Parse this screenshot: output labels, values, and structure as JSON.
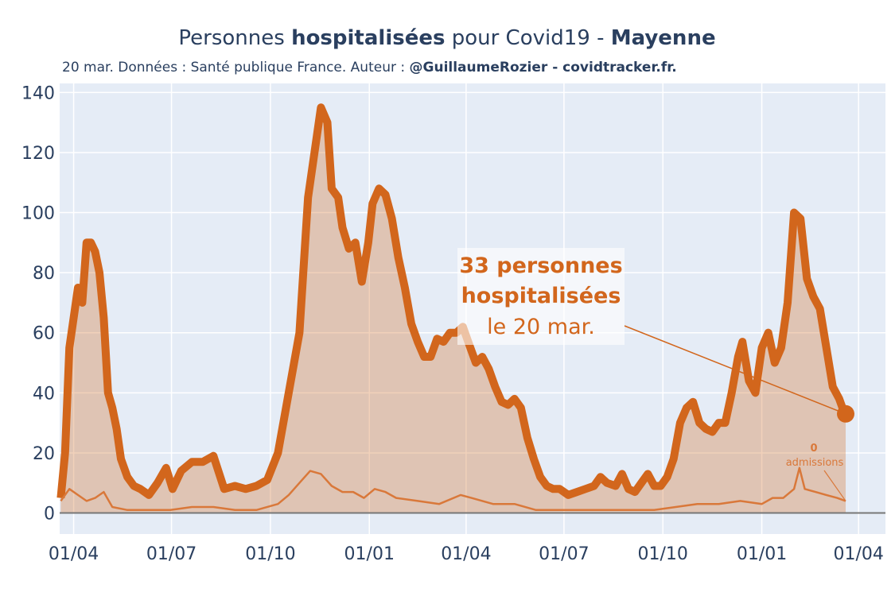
{
  "chart_data": {
    "type": "line",
    "title_parts": [
      "Personnes ",
      "hospitalisées",
      " pour Covid19 - ",
      "Mayenne"
    ],
    "subtitle_parts": [
      "20 mar. Données : Santé publique France. Auteur : ",
      "@GuillaumeRozier - covidtracker.fr."
    ],
    "xlim": [
      -13,
      755
    ],
    "xticks": [
      {
        "value": 0,
        "label": "01/04"
      },
      {
        "value": 91,
        "label": "01/07"
      },
      {
        "value": 183,
        "label": "01/10"
      },
      {
        "value": 275,
        "label": "01/01"
      },
      {
        "value": 365,
        "label": "01/04"
      },
      {
        "value": 456,
        "label": "01/07"
      },
      {
        "value": 548,
        "label": "01/10"
      },
      {
        "value": 640,
        "label": "01/01"
      },
      {
        "value": 730,
        "label": "01/04"
      }
    ],
    "ylim": [
      -7,
      143
    ],
    "yticks": [
      0,
      20,
      40,
      60,
      80,
      100,
      120,
      140
    ],
    "grid": true,
    "series": [
      {
        "color": "#d2661c",
        "fill": true,
        "x": [
          -12,
          -8,
          -4,
          0,
          4,
          8,
          12,
          16,
          20,
          24,
          28,
          32,
          36,
          40,
          44,
          50,
          56,
          62,
          70,
          78,
          86,
          92,
          100,
          110,
          120,
          130,
          140,
          150,
          160,
          170,
          180,
          190,
          200,
          210,
          218,
          224,
          230,
          236,
          240,
          246,
          250,
          256,
          262,
          268,
          274,
          278,
          284,
          290,
          296,
          302,
          308,
          314,
          320,
          326,
          332,
          338,
          344,
          350,
          356,
          362,
          368,
          374,
          380,
          386,
          392,
          398,
          404,
          410,
          416,
          422,
          428,
          434,
          440,
          446,
          452,
          460,
          468,
          476,
          484,
          490,
          496,
          504,
          510,
          516,
          522,
          528,
          534,
          540,
          546,
          552,
          558,
          564,
          570,
          576,
          582,
          588,
          594,
          600,
          606,
          612,
          618,
          622,
          628,
          634,
          640,
          646,
          652,
          658,
          664,
          670,
          676,
          682,
          688,
          694,
          700,
          706,
          712,
          716,
          718
        ],
        "values": [
          5,
          20,
          55,
          65,
          75,
          70,
          90,
          90,
          87,
          80,
          65,
          40,
          35,
          28,
          18,
          12,
          9,
          8,
          6,
          10,
          15,
          8,
          14,
          17,
          17,
          19,
          8,
          9,
          8,
          9,
          11,
          20,
          40,
          60,
          105,
          120,
          135,
          130,
          108,
          105,
          95,
          88,
          90,
          77,
          90,
          103,
          108,
          106,
          98,
          85,
          75,
          63,
          57,
          52,
          52,
          58,
          57,
          60,
          60,
          62,
          56,
          50,
          52,
          48,
          42,
          37,
          36,
          38,
          35,
          25,
          18,
          12,
          9,
          8,
          8,
          6,
          7,
          8,
          9,
          12,
          10,
          9,
          13,
          8,
          7,
          10,
          13,
          9,
          9,
          12,
          18,
          30,
          35,
          37,
          30,
          28,
          27,
          30,
          30,
          40,
          52,
          57,
          44,
          40,
          55,
          60,
          50,
          55,
          70,
          100,
          98,
          78,
          72,
          68,
          55,
          42,
          38,
          34,
          33
        ]
      },
      {
        "color": "#d9783a",
        "fill": false,
        "x": [
          -12,
          -4,
          4,
          12,
          20,
          28,
          36,
          50,
          70,
          90,
          110,
          130,
          150,
          170,
          190,
          200,
          210,
          220,
          230,
          240,
          250,
          260,
          270,
          280,
          290,
          300,
          320,
          340,
          360,
          370,
          390,
          410,
          430,
          450,
          480,
          510,
          540,
          560,
          580,
          600,
          620,
          640,
          650,
          660,
          670,
          675,
          680,
          690,
          700,
          710,
          718
        ],
        "values": [
          4,
          8,
          6,
          4,
          5,
          7,
          2,
          1,
          1,
          1,
          2,
          2,
          1,
          1,
          3,
          6,
          10,
          14,
          13,
          9,
          7,
          7,
          5,
          8,
          7,
          5,
          4,
          3,
          6,
          5,
          3,
          3,
          1,
          1,
          1,
          1,
          1,
          2,
          3,
          3,
          4,
          3,
          5,
          5,
          8,
          15,
          8,
          7,
          6,
          5,
          4
        ]
      }
    ],
    "annotations": [
      {
        "lines": [
          "33 personnes",
          "hospitalisées",
          "le 20 mar."
        ]
      },
      {
        "lines": [
          "0",
          "admissions"
        ]
      }
    ]
  }
}
